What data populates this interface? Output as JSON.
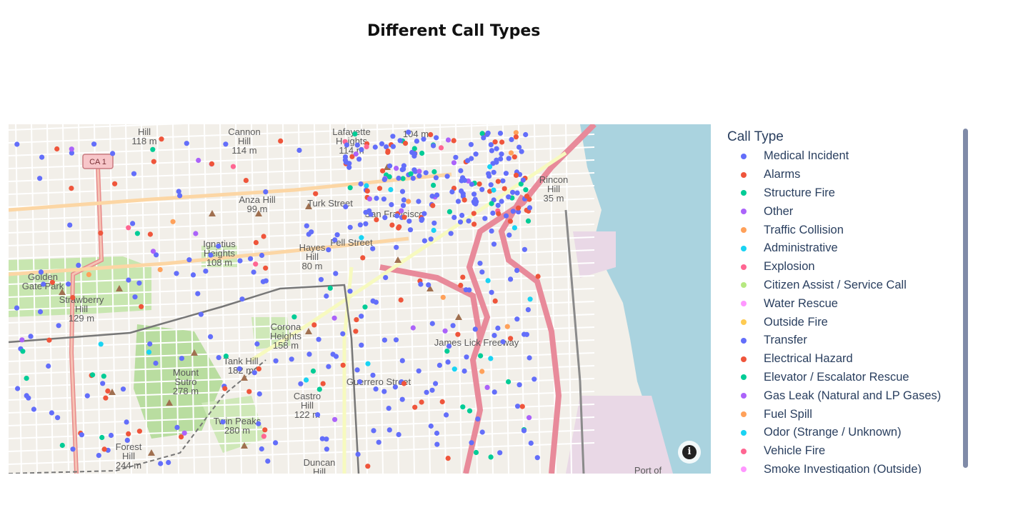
{
  "title": "Different Call Types",
  "legend": {
    "title": "Call Type",
    "items": [
      {
        "label": "Medical Incident",
        "color": "#636efa"
      },
      {
        "label": "Alarms",
        "color": "#ef553b"
      },
      {
        "label": "Structure Fire",
        "color": "#00cc96"
      },
      {
        "label": "Other",
        "color": "#ab63fa"
      },
      {
        "label": "Traffic Collision",
        "color": "#ffa15a"
      },
      {
        "label": "Administrative",
        "color": "#19d3f3"
      },
      {
        "label": "Explosion",
        "color": "#ff6692"
      },
      {
        "label": "Citizen Assist / Service Call",
        "color": "#b6e880"
      },
      {
        "label": "Water Rescue",
        "color": "#ff97ff"
      },
      {
        "label": "Outside Fire",
        "color": "#fecb52"
      },
      {
        "label": "Transfer",
        "color": "#636efa"
      },
      {
        "label": "Electrical Hazard",
        "color": "#ef553b"
      },
      {
        "label": "Elevator / Escalator Rescue",
        "color": "#00cc96"
      },
      {
        "label": "Gas Leak (Natural and LP Gases)",
        "color": "#ab63fa"
      },
      {
        "label": "Fuel Spill",
        "color": "#ffa15a"
      },
      {
        "label": "Odor (Strange / Unknown)",
        "color": "#19d3f3"
      },
      {
        "label": "Vehicle Fire",
        "color": "#ff6692"
      },
      {
        "label": "Smoke Investigation (Outside)",
        "color": "#ff97ff"
      }
    ]
  },
  "map": {
    "labels": [
      "Hill\n118 m",
      "Cannon\nHill\n114 m",
      "Lafayette\nHeights\n114 m",
      "104 m",
      "CA 1",
      "San Francisco",
      "Anza Hill\n99 m",
      "Ignatius\nHeights\n108 m",
      "Hayes\nHill\n80 m",
      "Fell Street",
      "Rincon\nHill\n35 m",
      "Golden\nGate Park",
      "Strawberry\nHill\n129 m",
      "Corona\nHeights\n158 m",
      "Tank Hill\n182 m",
      "Mount\nSutro\n278 m",
      "Twin Peaks\n280 m",
      "Castro\nHill\n122 m",
      "Forest\nHill\n244 m",
      "Duncan\nHill",
      "Guerrero Street",
      "James Lick Freeway",
      "Port of",
      "Turk Street"
    ]
  }
}
